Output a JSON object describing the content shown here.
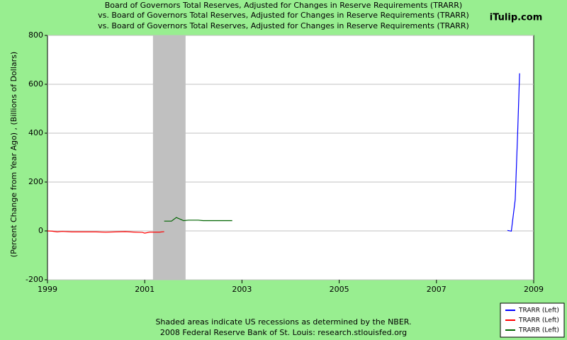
{
  "chart_data": {
    "type": "line",
    "title_lines": [
      "Board of Governors Total Reserves, Adjusted for Changes in Reserve Requirements (TRARR)",
      "vs.  Board of Governors Total Reserves, Adjusted for Changes in Reserve Requirements (TRARR)",
      "vs.  Board of Governors Total Reserves, Adjusted for Changes in Reserve Requirements (TRARR)"
    ],
    "watermark": "iTulip.com",
    "y_label": "(Percent Change from Year Ago) , (Billions of Dollars)",
    "notes": [
      "Shaded areas indicate US recessions as determined by the NBER.",
      "2008 Federal Reserve Bank of St. Louis: research.stlouisfed.org"
    ],
    "xlim": [
      1999,
      2009
    ],
    "xticks": [
      1999,
      2001,
      2003,
      2005,
      2007,
      2009
    ],
    "ylim": [
      -200,
      800
    ],
    "yticks": [
      -200,
      0,
      200,
      400,
      600,
      800
    ],
    "grid": true,
    "recessions": [
      [
        2001.17,
        2001.84
      ]
    ],
    "series": [
      {
        "name": "TRARR (Left)",
        "color": "#0000ff",
        "x": [
          2008.46,
          2008.54,
          2008.62,
          2008.67,
          2008.71
        ],
        "values": [
          2,
          -1,
          128,
          400,
          645
        ]
      },
      {
        "name": "TRARR (Left)",
        "color": "#ff0000",
        "x": [
          1999.0,
          1999.1,
          1999.2,
          1999.3,
          1999.5,
          1999.8,
          2000.0,
          2000.2,
          2000.4,
          2000.6,
          2000.8,
          2000.95,
          2001.0,
          2001.1,
          2001.3,
          2001.4
        ],
        "values": [
          0,
          -1,
          -4,
          -2,
          -4,
          -4,
          -4,
          -5,
          -4,
          -3,
          -5,
          -6,
          -9,
          -5,
          -5,
          -3
        ]
      },
      {
        "name": "TRARR (Left)",
        "color": "#006400",
        "x": [
          2001.4,
          2001.55,
          2001.65,
          2001.8,
          2001.9,
          2002.1,
          2002.2,
          2002.5,
          2002.8
        ],
        "values": [
          40,
          40,
          55,
          42,
          44,
          44,
          42,
          42,
          42
        ]
      }
    ]
  }
}
